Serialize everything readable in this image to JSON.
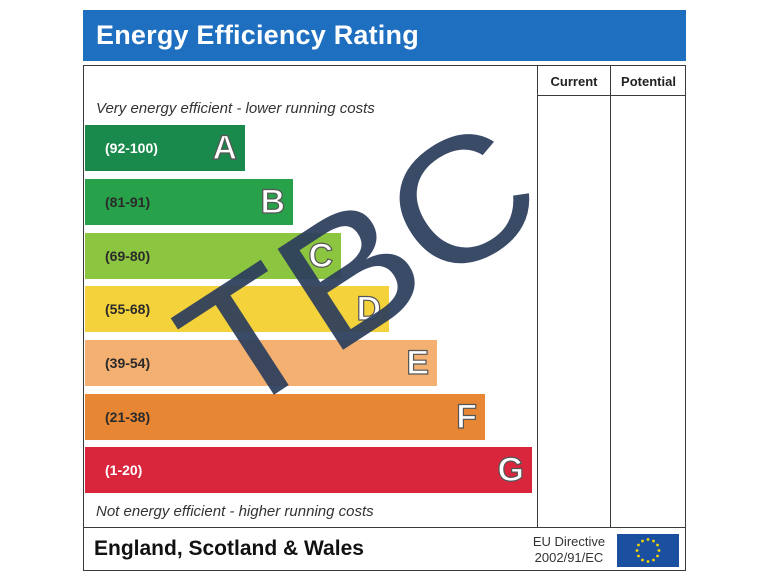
{
  "title": "Energy Efficiency Rating",
  "columns": {
    "current": "Current",
    "potential": "Potential"
  },
  "top_caption": "Very energy efficient - lower running costs",
  "bottom_caption": "Not energy efficient - higher running costs",
  "bands": [
    {
      "range": "(92-100)",
      "letter": "A",
      "color": "#1a8a4c"
    },
    {
      "range": "(81-91)",
      "letter": "B",
      "color": "#27a24a"
    },
    {
      "range": "(69-80)",
      "letter": "C",
      "color": "#8cc540"
    },
    {
      "range": "(55-68)",
      "letter": "D",
      "color": "#f4d23b"
    },
    {
      "range": "(39-54)",
      "letter": "E",
      "color": "#f3b071"
    },
    {
      "range": "(21-38)",
      "letter": "F",
      "color": "#e88733"
    },
    {
      "range": "(1-20)",
      "letter": "G",
      "color": "#d9263d"
    }
  ],
  "footer": {
    "region": "England, Scotland & Wales",
    "directive_line1": "EU Directive",
    "directive_line2": "2002/91/EC"
  },
  "watermark": "TBC",
  "colors": {
    "title_bg": "#1f6fc0",
    "watermark": "#2b3d5c",
    "eu_blue": "#1b4fa0",
    "eu_star": "#f5d400"
  }
}
